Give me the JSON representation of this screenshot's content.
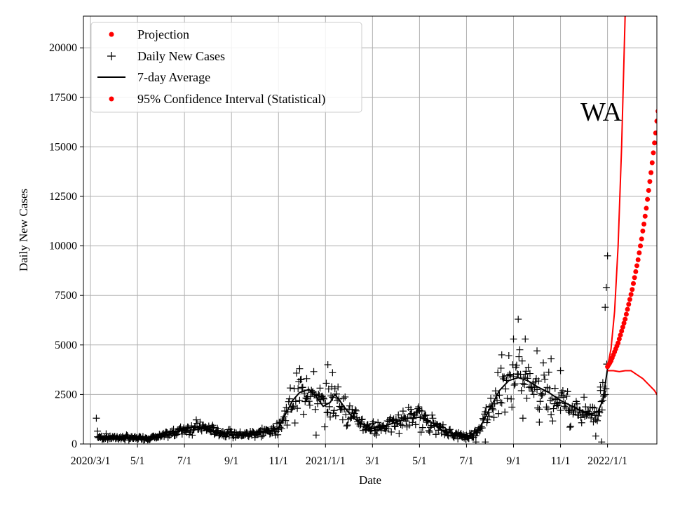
{
  "chart_data": {
    "type": "line",
    "xlabel": "Date",
    "ylabel": "Daily New Cases",
    "annotation": "WA",
    "ylim": [
      0,
      21600
    ],
    "y_ticks": [
      0,
      2500,
      5000,
      7500,
      10000,
      12500,
      15000,
      17500,
      20000
    ],
    "x_range_months": [
      -0.3,
      24.1
    ],
    "x_ticks": [
      {
        "m": 0,
        "label": "2020/3/1"
      },
      {
        "m": 2,
        "label": "5/1"
      },
      {
        "m": 4,
        "label": "7/1"
      },
      {
        "m": 6,
        "label": "9/1"
      },
      {
        "m": 8,
        "label": "11/1"
      },
      {
        "m": 10,
        "label": "2021/1/1"
      },
      {
        "m": 12,
        "label": "3/1"
      },
      {
        "m": 14,
        "label": "5/1"
      },
      {
        "m": 16,
        "label": "7/1"
      },
      {
        "m": 18,
        "label": "9/1"
      },
      {
        "m": 20,
        "label": "11/1"
      },
      {
        "m": 22,
        "label": "2022/1/1"
      }
    ],
    "grid": true,
    "legend_position": "top-left",
    "legend": [
      "Projection",
      "Daily New Cases",
      "7-day Average",
      "95% Confidence Interval (Statistical)"
    ],
    "series": [
      {
        "name": "7-day Average",
        "style": "line",
        "color": "#000000",
        "points": [
          [
            0.3,
            350
          ],
          [
            1,
            330
          ],
          [
            2,
            290
          ],
          [
            2.7,
            330
          ],
          [
            3.3,
            450
          ],
          [
            3.8,
            700
          ],
          [
            4.3,
            850
          ],
          [
            4.8,
            800
          ],
          [
            5.3,
            650
          ],
          [
            6,
            480
          ],
          [
            6.5,
            460
          ],
          [
            7,
            550
          ],
          [
            7.6,
            650
          ],
          [
            8,
            800
          ],
          [
            8.3,
            1500
          ],
          [
            8.6,
            2200
          ],
          [
            8.9,
            2600
          ],
          [
            9.3,
            2750
          ],
          [
            9.6,
            2400
          ],
          [
            9.9,
            1900
          ],
          [
            10.2,
            2100
          ],
          [
            10.4,
            2500
          ],
          [
            10.6,
            2200
          ],
          [
            10.9,
            1700
          ],
          [
            11.2,
            1300
          ],
          [
            11.6,
            1000
          ],
          [
            12,
            800
          ],
          [
            12.5,
            900
          ],
          [
            13,
            1100
          ],
          [
            13.5,
            1300
          ],
          [
            14,
            1350
          ],
          [
            14.5,
            1100
          ],
          [
            15,
            650
          ],
          [
            15.5,
            500
          ],
          [
            16,
            350
          ],
          [
            16.3,
            500
          ],
          [
            16.6,
            900
          ],
          [
            17,
            1800
          ],
          [
            17.4,
            2700
          ],
          [
            17.8,
            3200
          ],
          [
            18.2,
            3350
          ],
          [
            18.6,
            3200
          ],
          [
            19,
            2900
          ],
          [
            19.5,
            2600
          ],
          [
            20,
            2200
          ],
          [
            20.5,
            1900
          ],
          [
            21,
            1600
          ],
          [
            21.3,
            1500
          ],
          [
            21.6,
            1650
          ],
          [
            21.8,
            2200
          ],
          [
            22,
            3800
          ]
        ]
      },
      {
        "name": "Projection",
        "style": "line",
        "color": "#ff0000",
        "points": [
          [
            22,
            3900
          ],
          [
            22.15,
            4800
          ],
          [
            22.3,
            6700
          ],
          [
            22.45,
            10000
          ],
          [
            22.6,
            15000
          ],
          [
            22.75,
            21600
          ]
        ]
      },
      {
        "name": "95% Confidence Interval (Statistical) lower",
        "style": "line",
        "color": "#ff0000",
        "points": [
          [
            22,
            3700
          ],
          [
            22.25,
            3700
          ],
          [
            22.5,
            3650
          ],
          [
            22.75,
            3700
          ],
          [
            23,
            3700
          ],
          [
            23.25,
            3500
          ],
          [
            23.5,
            3300
          ],
          [
            23.75,
            3000
          ],
          [
            24,
            2700
          ],
          [
            24.2,
            2300
          ]
        ]
      },
      {
        "name": "95% Confidence Interval (Statistical)",
        "style": "dots",
        "color": "#ff0000",
        "points": [
          [
            22,
            3900
          ],
          [
            22.05,
            4000
          ],
          [
            22.1,
            4100
          ],
          [
            22.15,
            4200
          ],
          [
            22.2,
            4350
          ],
          [
            22.25,
            4500
          ],
          [
            22.3,
            4650
          ],
          [
            22.35,
            4800
          ],
          [
            22.4,
            4950
          ],
          [
            22.45,
            5100
          ],
          [
            22.5,
            5300
          ],
          [
            22.55,
            5500
          ],
          [
            22.6,
            5700
          ],
          [
            22.65,
            5900
          ],
          [
            22.7,
            6100
          ],
          [
            22.75,
            6300
          ],
          [
            22.8,
            6550
          ],
          [
            22.85,
            6800
          ],
          [
            22.9,
            7050
          ],
          [
            22.95,
            7300
          ],
          [
            23,
            7550
          ],
          [
            23.05,
            7800
          ],
          [
            23.1,
            8100
          ],
          [
            23.15,
            8400
          ],
          [
            23.2,
            8700
          ],
          [
            23.25,
            9000
          ],
          [
            23.3,
            9300
          ],
          [
            23.35,
            9650
          ],
          [
            23.4,
            10000
          ],
          [
            23.45,
            10350
          ],
          [
            23.5,
            10750
          ],
          [
            23.55,
            11100
          ],
          [
            23.6,
            11500
          ],
          [
            23.65,
            11900
          ],
          [
            23.7,
            12350
          ],
          [
            23.75,
            12800
          ],
          [
            23.8,
            13250
          ],
          [
            23.85,
            13700
          ],
          [
            23.9,
            14200
          ],
          [
            23.95,
            14700
          ],
          [
            24,
            15200
          ],
          [
            24.05,
            15700
          ],
          [
            24.1,
            16300
          ],
          [
            24.15,
            16800
          ],
          [
            24.2,
            17400
          ],
          [
            24.25,
            17950
          ]
        ]
      }
    ],
    "daily_cases_model": {
      "name": "Daily New Cases",
      "marker": "+",
      "color": "#000000",
      "samples_per_month": 30,
      "outliers": [
        [
          0.25,
          1300
        ],
        [
          0.3,
          650
        ],
        [
          8.9,
          3800
        ],
        [
          9.2,
          3300
        ],
        [
          9.6,
          450
        ],
        [
          10.1,
          4000
        ],
        [
          10.3,
          3600
        ],
        [
          17.5,
          4500
        ],
        [
          18,
          5300
        ],
        [
          18.2,
          6300
        ],
        [
          18.5,
          5300
        ],
        [
          19,
          4700
        ],
        [
          19.6,
          4300
        ],
        [
          20,
          3700
        ],
        [
          18.4,
          1300
        ],
        [
          19.1,
          1100
        ],
        [
          20.4,
          850
        ],
        [
          21.5,
          400
        ],
        [
          21.75,
          100
        ],
        [
          21.9,
          6900
        ],
        [
          21.95,
          7900
        ],
        [
          22,
          9500
        ],
        [
          21.8,
          3100
        ],
        [
          21.7,
          2700
        ],
        [
          16.4,
          100
        ],
        [
          16.8,
          100
        ]
      ]
    }
  }
}
